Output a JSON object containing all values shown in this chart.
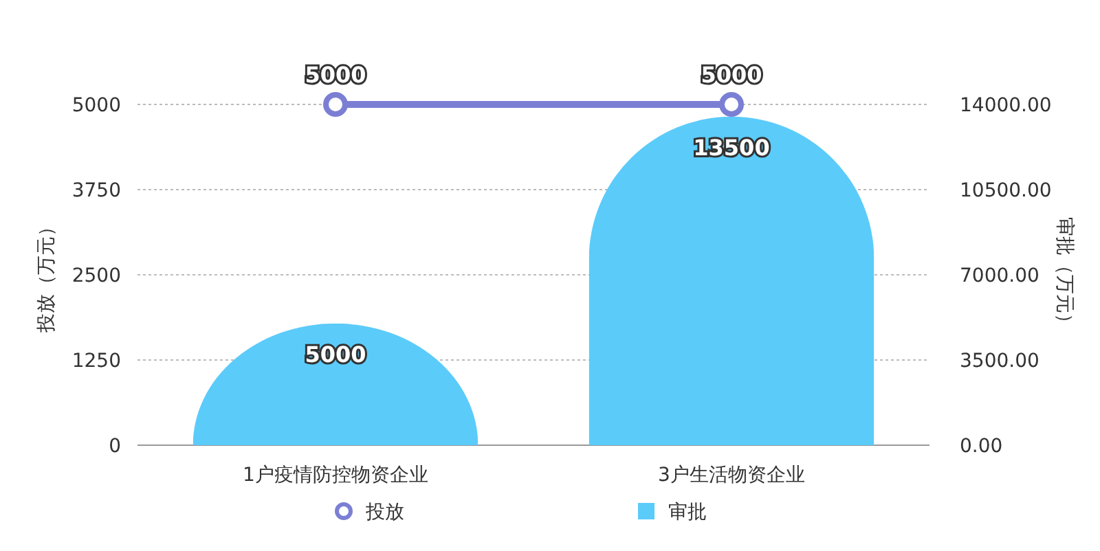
{
  "chart_data": {
    "type": "bar",
    "categories": [
      "1户疫情防控物资企业",
      "3户生活物资企业"
    ],
    "series": [
      {
        "name": "投放",
        "type": "line",
        "color": "#7b7fd4",
        "axis": "y",
        "values": [
          5000,
          5000
        ]
      },
      {
        "name": "审批",
        "color": "#5bcbfa",
        "axis": "y2",
        "values": [
          5000,
          13500
        ]
      }
    ],
    "ylabel": "投放（万元）",
    "y2label": "审批（万元）",
    "ylim": [
      0,
      5000
    ],
    "yticks": [
      0,
      1250,
      2500,
      3750,
      5000
    ],
    "y2lim": [
      0,
      14000
    ],
    "y2ticks": [
      {
        "value": 0,
        "label": "0.00"
      },
      {
        "value": 3500,
        "label": "3500.00"
      },
      {
        "value": 7000,
        "label": "7000.00"
      },
      {
        "value": 10500,
        "label": "10500.00"
      },
      {
        "value": 14000,
        "label": "14000.00"
      }
    ],
    "grid": "y",
    "legend": "bottom",
    "marker": "circle",
    "data_labels": true
  }
}
